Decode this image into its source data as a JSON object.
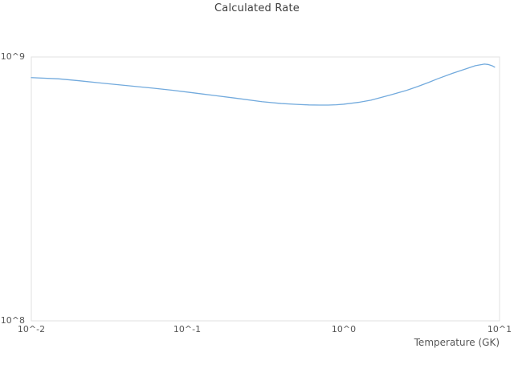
{
  "figure": {
    "title": "Calculated Rate",
    "background_color": "#ffffff",
    "frame_color": "#e0e0e0",
    "text_color": "#565656",
    "title_color": "#3e3e3e",
    "line_color": "#72aadd"
  },
  "chart_data": {
    "type": "line",
    "title": "Calculated Rate",
    "xlabel": "Temperature (GK)",
    "ylabel": "",
    "x_scale": "log",
    "y_scale": "log",
    "xlim": [
      0.01,
      10
    ],
    "ylim": [
      100000000.0,
      1000000000.0
    ],
    "x_log_range": [
      -2,
      1
    ],
    "y_log_range": [
      8,
      9
    ],
    "x_tick_labels": [
      "10^-2",
      "10^-1",
      "10^0",
      "10^1"
    ],
    "y_tick_labels": [
      "10^8",
      "10^9"
    ],
    "grid": false,
    "legend": "none",
    "series": [
      {
        "name": "Calculated Rate",
        "x": [
          0.01,
          0.015,
          0.02,
          0.03,
          0.04,
          0.05,
          0.06,
          0.08,
          0.1,
          0.15,
          0.2,
          0.3,
          0.4,
          0.5,
          0.6,
          0.7,
          0.8,
          0.9,
          1.0,
          1.25,
          1.5,
          2.0,
          2.5,
          3.0,
          3.5,
          4.0,
          5.0,
          6.0,
          7.0,
          8.0,
          8.5,
          9.0,
          9.3
        ],
        "y": [
          835000000.0,
          826000000.0,
          813000000.0,
          793000000.0,
          780000000.0,
          770000000.0,
          762000000.0,
          748000000.0,
          736000000.0,
          714000000.0,
          699000000.0,
          677000000.0,
          666000000.0,
          661000000.0,
          658000000.0,
          657000000.0,
          657000000.0,
          659000000.0,
          662000000.0,
          673000000.0,
          686000000.0,
          718000000.0,
          745000000.0,
          773000000.0,
          800000000.0,
          826000000.0,
          867000000.0,
          899000000.0,
          927000000.0,
          940000000.0,
          936000000.0,
          925000000.0,
          915000000.0
        ]
      }
    ]
  }
}
